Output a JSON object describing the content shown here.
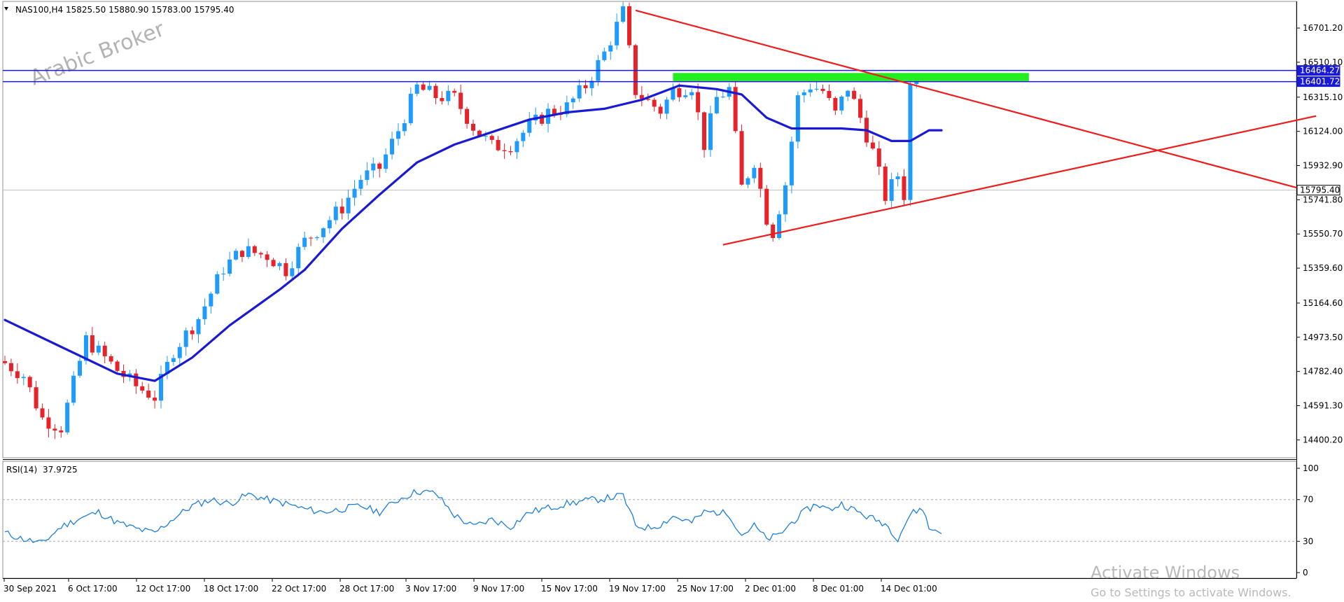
{
  "header": {
    "symbol_timeframe": "NAS100,H4",
    "ohlc": "15825.50 15880.90 15783.00 15795.40",
    "menu_icon": "triangle-down-icon"
  },
  "watermark": "Arabic Broker",
  "activation": {
    "title": "Activate Windows",
    "subtitle": "Go to Settings to activate Windows."
  },
  "colors": {
    "bull": "#1e9bff",
    "bear": "#e8222a",
    "ma": "#1a1ad4",
    "trend": "#ee1c1c",
    "level": "#1a1ad4",
    "zone": "#22ee22",
    "rsi": "#1c7fdc",
    "price_line": "#c0c0c0"
  },
  "chart_data": [
    {
      "type": "candlestick",
      "title": "",
      "symbol": "NAS100",
      "timeframe": "H4",
      "ylim": [
        14300,
        16850
      ],
      "y_ticks": [
        "16701.20",
        "16510.10",
        "16315.10",
        "16124.00",
        "15932.90",
        "15741.80",
        "15550.70",
        "15359.60",
        "15164.60",
        "14973.50",
        "14782.40",
        "14591.30",
        "14400.20"
      ],
      "x_labels": [
        "30 Sep 2021",
        "6 Oct 17:00",
        "12 Oct 17:00",
        "18 Oct 17:00",
        "22 Oct 17:00",
        "28 Oct 17:00",
        "3 Nov 17:00",
        "9 Nov 17:00",
        "15 Nov 17:00",
        "19 Nov 17:00",
        "25 Nov 17:00",
        "2 Dec 01:00",
        "8 Dec 01:00",
        "14 Dec 01:00"
      ],
      "bar_count": 147,
      "close_path": [
        [
          0,
          14830
        ],
        [
          3,
          14760
        ],
        [
          6,
          14520
        ],
        [
          9,
          14470
        ],
        [
          13,
          14960
        ],
        [
          18,
          14790
        ],
        [
          21,
          14700
        ],
        [
          24,
          14640
        ],
        [
          27,
          14900
        ],
        [
          31,
          15080
        ],
        [
          35,
          15360
        ],
        [
          38,
          15460
        ],
        [
          42,
          15430
        ],
        [
          45,
          15350
        ],
        [
          48,
          15510
        ],
        [
          51,
          15600
        ],
        [
          54,
          15700
        ],
        [
          57,
          15860
        ],
        [
          60,
          15920
        ],
        [
          63,
          16130
        ],
        [
          66,
          16370
        ],
        [
          69,
          16320
        ],
        [
          72,
          16310
        ],
        [
          75,
          16150
        ],
        [
          78,
          16040
        ],
        [
          81,
          16050
        ],
        [
          84,
          16150
        ],
        [
          87,
          16230
        ],
        [
          90,
          16260
        ],
        [
          93,
          16380
        ],
        [
          96,
          16560
        ],
        [
          99,
          16790
        ],
        [
          101,
          16350
        ],
        [
          103,
          16290
        ],
        [
          105,
          16240
        ],
        [
          107,
          16350
        ],
        [
          110,
          16380
        ],
        [
          112,
          16050
        ],
        [
          114,
          16310
        ],
        [
          116,
          16360
        ],
        [
          118,
          15810
        ],
        [
          120,
          15960
        ],
        [
          122,
          15640
        ],
        [
          123,
          15560
        ],
        [
          125,
          15830
        ],
        [
          127,
          16310
        ],
        [
          129,
          16380
        ],
        [
          131,
          16350
        ],
        [
          133,
          16220
        ],
        [
          135,
          16370
        ],
        [
          137,
          16200
        ],
        [
          139,
          16010
        ],
        [
          141,
          15760
        ],
        [
          143,
          15880
        ],
        [
          144,
          15770
        ],
        [
          145,
          16380
        ],
        [
          146,
          16440
        ],
        [
          147,
          16280
        ],
        [
          148,
          15950
        ],
        [
          150,
          15795
        ]
      ],
      "moving_average": {
        "path": [
          [
            0,
            15070
          ],
          [
            9,
            14920
          ],
          [
            18,
            14770
          ],
          [
            24,
            14730
          ],
          [
            30,
            14860
          ],
          [
            36,
            15040
          ],
          [
            44,
            15240
          ],
          [
            48,
            15350
          ],
          [
            54,
            15580
          ],
          [
            60,
            15770
          ],
          [
            66,
            15950
          ],
          [
            72,
            16050
          ],
          [
            78,
            16120
          ],
          [
            84,
            16190
          ],
          [
            90,
            16230
          ],
          [
            96,
            16250
          ],
          [
            102,
            16300
          ],
          [
            108,
            16380
          ],
          [
            114,
            16360
          ],
          [
            118,
            16330
          ],
          [
            122,
            16200
          ],
          [
            126,
            16140
          ],
          [
            130,
            16140
          ],
          [
            134,
            16140
          ],
          [
            138,
            16130
          ],
          [
            142,
            16070
          ],
          [
            145,
            16070
          ],
          [
            148,
            16130
          ],
          [
            150,
            16130
          ]
        ]
      },
      "horizontal_levels": [
        16464.27,
        16401.72
      ],
      "price_labels": [
        "16464.27",
        "16401.72",
        "15795.40"
      ],
      "current_price": 15795.4,
      "resistance_zone": {
        "x_start": 107,
        "x_end": 164,
        "y_low": 16405,
        "y_high": 16450
      },
      "trendlines": [
        {
          "x1": 101,
          "y1": 16800,
          "x2": 210,
          "y2": 15780
        },
        {
          "x1": 115,
          "y1": 15490,
          "x2": 210,
          "y2": 16210
        }
      ]
    },
    {
      "type": "line",
      "title": "RSI(14)",
      "current_value_label": "37.9725",
      "ylim": [
        0,
        100
      ],
      "y_ticks": [
        "100",
        "70",
        "30",
        "0"
      ],
      "levels": [
        70,
        30
      ],
      "path": [
        [
          0,
          38
        ],
        [
          3,
          32
        ],
        [
          6,
          28
        ],
        [
          9,
          44
        ],
        [
          12,
          52
        ],
        [
          15,
          58
        ],
        [
          18,
          48
        ],
        [
          21,
          42
        ],
        [
          24,
          38
        ],
        [
          27,
          52
        ],
        [
          30,
          64
        ],
        [
          33,
          70
        ],
        [
          36,
          66
        ],
        [
          39,
          75
        ],
        [
          42,
          70
        ],
        [
          45,
          66
        ],
        [
          48,
          61
        ],
        [
          51,
          58
        ],
        [
          54,
          61
        ],
        [
          57,
          64
        ],
        [
          60,
          58
        ],
        [
          63,
          70
        ],
        [
          66,
          78
        ],
        [
          69,
          76
        ],
        [
          72,
          55
        ],
        [
          75,
          44
        ],
        [
          78,
          51
        ],
        [
          81,
          44
        ],
        [
          84,
          58
        ],
        [
          87,
          62
        ],
        [
          90,
          66
        ],
        [
          93,
          69
        ],
        [
          96,
          71
        ],
        [
          99,
          74
        ],
        [
          101,
          45
        ],
        [
          103,
          43
        ],
        [
          105,
          46
        ],
        [
          107,
          54
        ],
        [
          110,
          48
        ],
        [
          112,
          58
        ],
        [
          114,
          58
        ],
        [
          116,
          56
        ],
        [
          118,
          36
        ],
        [
          120,
          45
        ],
        [
          122,
          32
        ],
        [
          124,
          36
        ],
        [
          126,
          48
        ],
        [
          128,
          58
        ],
        [
          130,
          66
        ],
        [
          132,
          60
        ],
        [
          134,
          66
        ],
        [
          136,
          60
        ],
        [
          138,
          54
        ],
        [
          141,
          47
        ],
        [
          143,
          33
        ],
        [
          145,
          56
        ],
        [
          147,
          62
        ],
        [
          148,
          42
        ],
        [
          150,
          40
        ]
      ]
    }
  ]
}
